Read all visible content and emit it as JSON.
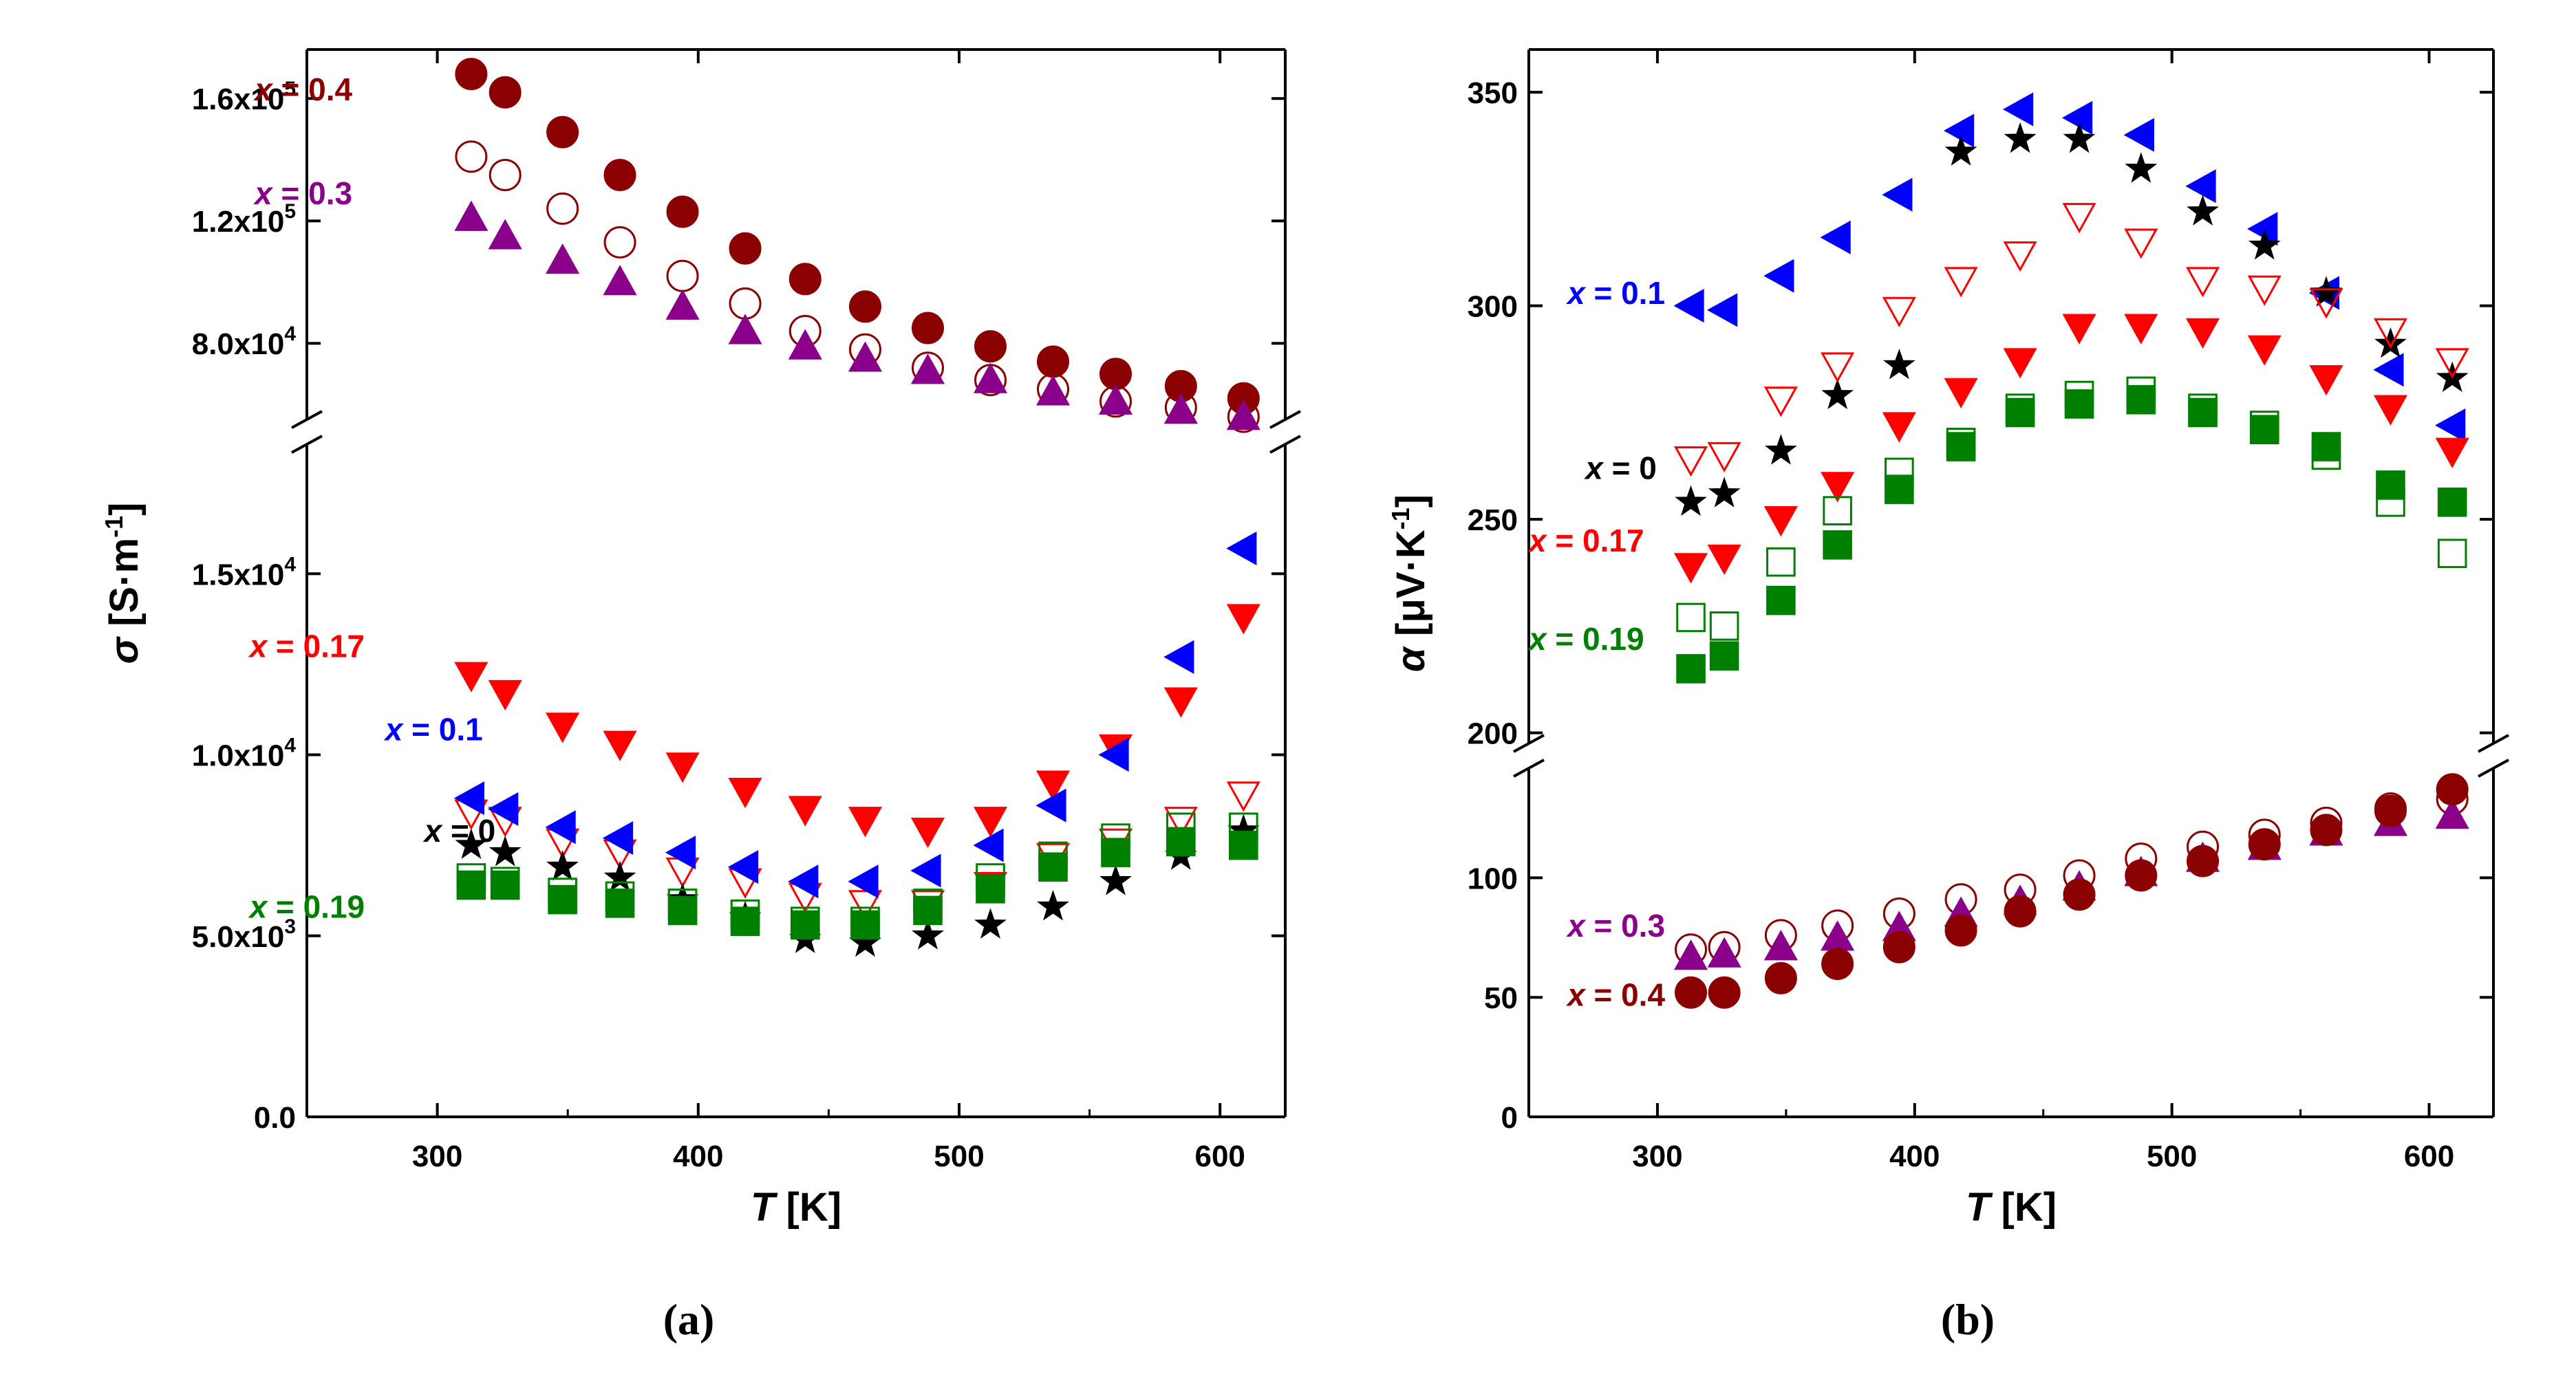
{
  "chart_data": [
    {
      "id": "a",
      "type": "scatter",
      "caption": "(a)",
      "ylabel_symbol": "σ",
      "ylabel_unit": "[S·m",
      "ylabel_exp": "-1",
      "ylabel_close": "]",
      "xlabel_symbol": "T",
      "xlabel_unit": " [K]",
      "xlim": [
        250,
        625
      ],
      "xticks": [
        {
          "v": 300,
          "label": "300"
        },
        {
          "v": 400,
          "label": "400"
        },
        {
          "v": 500,
          "label": "500"
        },
        {
          "v": 600,
          "label": "600"
        }
      ],
      "y_axis_break": true,
      "segments": [
        {
          "name": "lower",
          "ylim": [
            0,
            18500
          ],
          "ticks": [
            {
              "v": 0,
              "label": "0.0"
            },
            {
              "v": 5000,
              "label": "5.0x10",
              "exp": "3"
            },
            {
              "v": 10000,
              "label": "1.0x10",
              "exp": "4"
            },
            {
              "v": 15000,
              "label": "1.5x10",
              "exp": "4"
            }
          ]
        },
        {
          "name": "upper",
          "ylim": [
            56000,
            176000
          ],
          "ticks": [
            {
              "v": 80000,
              "label": "8.0x10",
              "exp": "4"
            },
            {
              "v": 120000,
              "label": "1.2x10",
              "exp": "5"
            },
            {
              "v": 160000,
              "label": "1.6x10",
              "exp": "5"
            }
          ]
        }
      ],
      "x": [
        313,
        326,
        348,
        370,
        394,
        418,
        441,
        464,
        488,
        512,
        536,
        560,
        585,
        609
      ],
      "series": [
        {
          "name": "x = 0.4",
          "label_x": "x",
          "label_rest": " = 0.4",
          "color": "#8b0000",
          "marker": "filled-circle",
          "segment": "upper",
          "label_pos": [
            230,
            163000
          ],
          "values": [
            168000,
            162000,
            149000,
            135000,
            123000,
            111000,
            101000,
            92000,
            85000,
            79000,
            74000,
            70000,
            66000,
            62000
          ]
        },
        {
          "name": "x = 0.3 (open)",
          "label_x": "",
          "label_rest": "",
          "color": "#8b0000",
          "marker": "open-circle",
          "segment": "upper",
          "values": [
            141000,
            135000,
            124000,
            113000,
            102000,
            93000,
            84000,
            78000,
            72000,
            68000,
            65000,
            61000,
            59000,
            56000
          ]
        },
        {
          "name": "x = 0.3",
          "label_x": "x",
          "label_rest": " = 0.3",
          "color": "#8b008b",
          "marker": "filled-triangle-up",
          "segment": "upper",
          "label_pos": [
            230,
            129000
          ],
          "values": [
            121000,
            115000,
            107000,
            100000,
            92000,
            84000,
            79000,
            75000,
            71000,
            68000,
            64000,
            61000,
            58000,
            56000
          ]
        },
        {
          "name": "x = 0.17",
          "label_x": "x",
          "label_rest": " = 0.17",
          "color": "#ff0000",
          "marker": "filled-triangle-down",
          "segment": "lower",
          "label_pos": [
            228,
            13000
          ],
          "values": [
            12200,
            11700,
            10800,
            10300,
            9700,
            9000,
            8500,
            8200,
            7900,
            8200,
            9200,
            10200,
            11500,
            13800
          ]
        },
        {
          "name": "x = 0.17 (open)",
          "label_x": "",
          "label_rest": "",
          "color": "#ff0000",
          "marker": "open-triangle-down",
          "segment": "lower",
          "values": [
            8400,
            8200,
            7600,
            7300,
            6800,
            6500,
            6100,
            5900,
            5900,
            6400,
            7200,
            7600,
            8200,
            8900
          ]
        },
        {
          "name": "x = 0.1",
          "label_x": "x",
          "label_rest": " = 0.1",
          "color": "#0000ff",
          "marker": "filled-triangle-left",
          "segment": "lower",
          "label_pos": [
            280,
            10700
          ],
          "values": [
            8800,
            8500,
            8000,
            7700,
            7300,
            6900,
            6500,
            6500,
            6800,
            7500,
            8600,
            10000,
            12700,
            15700
          ]
        },
        {
          "name": "x = 0",
          "label_x": "x",
          "label_rest": " = 0",
          "color": "#000000",
          "marker": "filled-star",
          "segment": "lower",
          "label_pos": [
            295,
            7900
          ],
          "values": [
            7500,
            7300,
            6900,
            6600,
            6000,
            5500,
            4900,
            4800,
            5000,
            5300,
            5800,
            6500,
            7200,
            7900
          ]
        },
        {
          "name": "x = 0.19",
          "label_x": "x",
          "label_rest": " = 0.19",
          "color": "#008000",
          "marker": "filled-square",
          "segment": "lower",
          "label_pos": [
            228,
            5800
          ],
          "values": [
            6400,
            6400,
            6000,
            5900,
            5700,
            5400,
            5300,
            5300,
            5700,
            6300,
            6900,
            7300,
            7600,
            7500
          ]
        },
        {
          "name": "x = 0.19 (open)",
          "label_x": "",
          "label_rest": "",
          "color": "#008000",
          "marker": "open-square",
          "segment": "lower",
          "values": [
            6600,
            6500,
            6200,
            6100,
            5900,
            5600,
            5400,
            5400,
            5900,
            6600,
            7200,
            7700,
            8000,
            8000
          ]
        }
      ]
    },
    {
      "id": "b",
      "type": "scatter",
      "caption": "(b)",
      "ylabel_symbol": "α",
      "ylabel_unit": "[μV·K",
      "ylabel_exp": "-1",
      "ylabel_close": "]",
      "xlabel_symbol": "T",
      "xlabel_unit": " [K]",
      "xlim": [
        250,
        625
      ],
      "xticks": [
        {
          "v": 300,
          "label": "300"
        },
        {
          "v": 400,
          "label": "400"
        },
        {
          "v": 500,
          "label": "500"
        },
        {
          "v": 600,
          "label": "600"
        }
      ],
      "y_axis_break": true,
      "segments": [
        {
          "name": "lower",
          "ylim": [
            0,
            145
          ],
          "ticks": [
            {
              "v": 0,
              "label": "0"
            },
            {
              "v": 50,
              "label": "50"
            },
            {
              "v": 100,
              "label": "100"
            }
          ]
        },
        {
          "name": "upper",
          "ylim": [
            198,
            360
          ],
          "ticks": [
            {
              "v": 200,
              "label": "200"
            },
            {
              "v": 250,
              "label": "250"
            },
            {
              "v": 300,
              "label": "300"
            },
            {
              "v": 350,
              "label": "350"
            }
          ]
        }
      ],
      "x": [
        313,
        326,
        348,
        370,
        394,
        418,
        441,
        464,
        488,
        512,
        536,
        560,
        585,
        609
      ],
      "series": [
        {
          "name": "x = 0.1",
          "label_x": "x",
          "label_rest": " = 0.1",
          "color": "#0000ff",
          "marker": "filled-triangle-left",
          "segment": "upper",
          "label_pos": [
            265,
            303
          ],
          "values": [
            300,
            299,
            307,
            316,
            326,
            341,
            346,
            344,
            340,
            328,
            318,
            303,
            285,
            272
          ]
        },
        {
          "name": "x = 0",
          "label_x": "x",
          "label_rest": " = 0",
          "color": "#000000",
          "marker": "filled-star",
          "segment": "upper",
          "label_pos": [
            272,
            262
          ],
          "values": [
            254,
            256,
            266,
            279,
            286,
            336,
            339,
            339,
            332,
            322,
            314,
            303,
            291,
            283
          ]
        },
        {
          "name": "x = 0.17 (open)",
          "label_x": "",
          "label_rest": "",
          "color": "#ff0000",
          "marker": "open-triangle-down",
          "segment": "upper",
          "values": [
            264,
            265,
            278,
            286,
            299,
            306,
            312,
            321,
            315,
            306,
            304,
            301,
            294,
            287
          ]
        },
        {
          "name": "x = 0.17",
          "label_x": "x",
          "label_rest": " = 0.17",
          "color": "#ff0000",
          "marker": "filled-triangle-down",
          "segment": "upper",
          "label_pos": [
            250,
            245
          ],
          "values": [
            239,
            241,
            250,
            258,
            272,
            280,
            287,
            295,
            295,
            294,
            290,
            283,
            276,
            266
          ]
        },
        {
          "name": "x = 0.19 (open)",
          "label_x": "",
          "label_rest": "",
          "color": "#008000",
          "marker": "open-square",
          "segment": "upper",
          "values": [
            227,
            225,
            240,
            252,
            261,
            268,
            276,
            279,
            280,
            276,
            272,
            265,
            254,
            242
          ]
        },
        {
          "name": "x = 0.19",
          "label_x": "x",
          "label_rest": " = 0.19",
          "color": "#008000",
          "marker": "filled-square",
          "segment": "upper",
          "label_pos": [
            250,
            222
          ],
          "values": [
            215,
            218,
            231,
            244,
            257,
            267,
            275,
            277,
            278,
            275,
            271,
            267,
            258,
            254
          ]
        },
        {
          "name": "x = 0.3 (open)",
          "label_x": "",
          "label_rest": "",
          "color": "#8b0000",
          "marker": "open-circle",
          "segment": "lower",
          "values": [
            70,
            71,
            76,
            80,
            85,
            91,
            95,
            101,
            108,
            113,
            118,
            123,
            129,
            133
          ]
        },
        {
          "name": "x = 0.3",
          "label_x": "x",
          "label_rest": " = 0.3",
          "color": "#8b008b",
          "marker": "filled-triangle-up",
          "segment": "lower",
          "label_pos": [
            265,
            80
          ],
          "values": [
            67,
            68,
            71,
            75,
            79,
            85,
            90,
            96,
            102,
            108,
            113,
            119,
            123,
            126
          ]
        },
        {
          "name": "x = 0.4",
          "label_x": "x",
          "label_rest": " = 0.4",
          "color": "#8b0000",
          "marker": "filled-circle",
          "segment": "lower",
          "label_pos": [
            265,
            51
          ],
          "values": [
            52,
            52,
            58,
            64,
            71,
            78,
            86,
            93,
            101,
            107,
            114,
            120,
            128,
            137
          ]
        }
      ]
    }
  ]
}
